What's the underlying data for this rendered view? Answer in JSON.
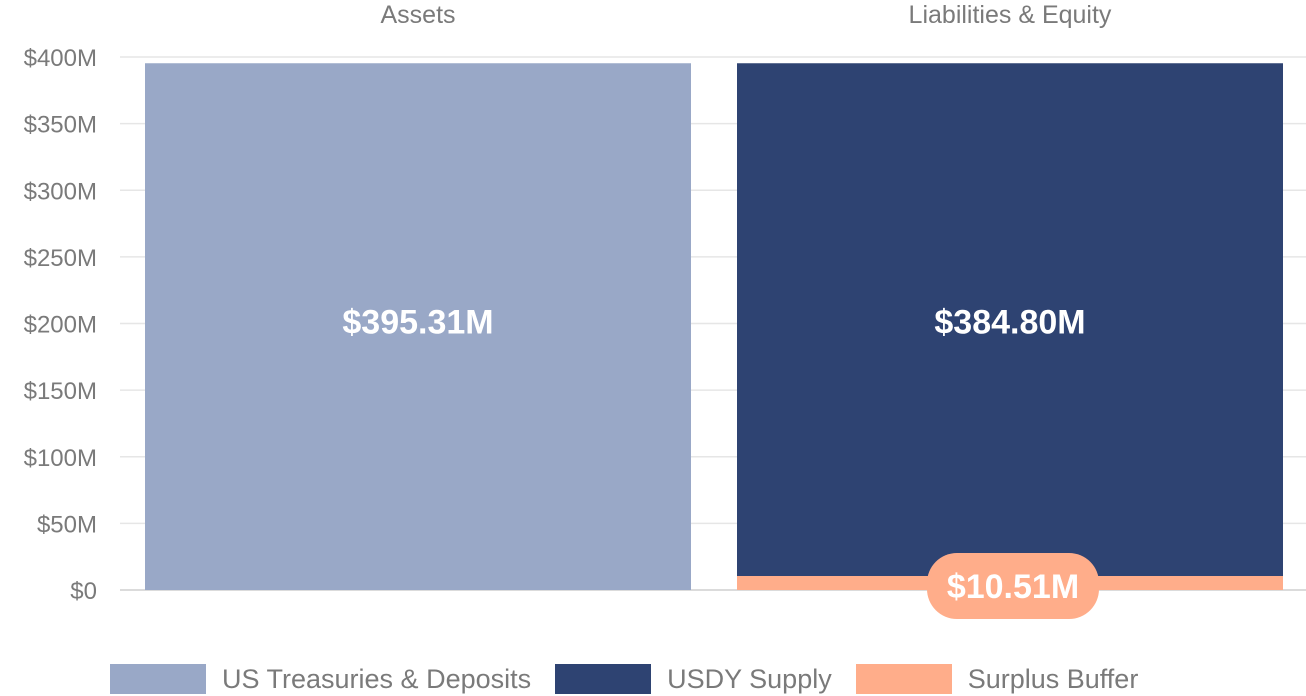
{
  "chart_data": {
    "type": "bar",
    "stacked": true,
    "categories": [
      "Assets",
      "Liabilities & Equity"
    ],
    "ylim": [
      0,
      400
    ],
    "y_ticks": [
      0,
      50,
      100,
      150,
      200,
      250,
      300,
      350,
      400
    ],
    "y_tick_labels": [
      "$0",
      "$50M",
      "$100M",
      "$150M",
      "$200M",
      "$250M",
      "$300M",
      "$350M",
      "$400M"
    ],
    "y_unit": "millions USD",
    "grid": true,
    "legend_position": "bottom",
    "series": [
      {
        "name": "US Treasuries & Deposits",
        "color": "#99a8c7",
        "values": [
          395.31,
          0
        ],
        "labels": [
          "$395.31M",
          ""
        ]
      },
      {
        "name": "Surplus Buffer",
        "color": "#ffad8a",
        "values": [
          0,
          10.51
        ],
        "labels": [
          "",
          "$10.51M"
        ]
      },
      {
        "name": "USDY Supply",
        "color": "#2e4372",
        "values": [
          0,
          384.8
        ],
        "labels": [
          "",
          "$384.80M"
        ]
      }
    ],
    "legend_order": [
      "US Treasuries & Deposits",
      "USDY Supply",
      "Surplus Buffer"
    ]
  }
}
